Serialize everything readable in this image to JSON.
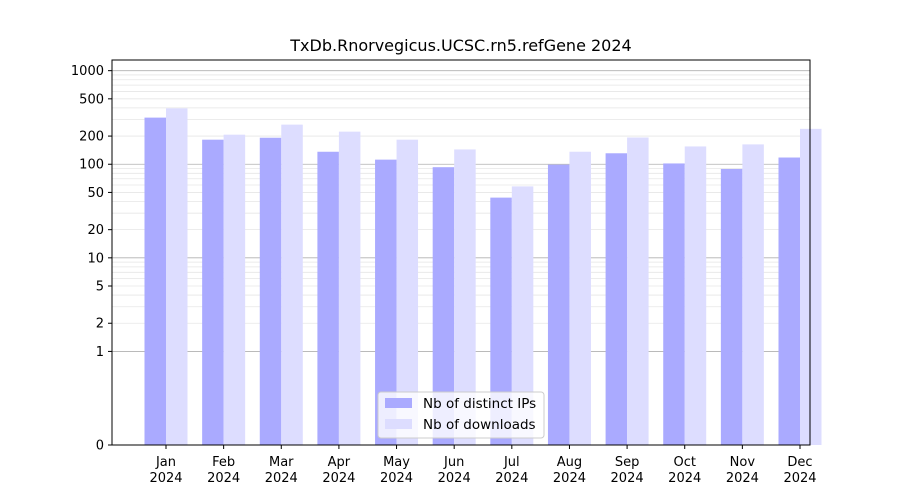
{
  "chart_data": {
    "type": "bar",
    "title": "TxDb.Rnorvegicus.UCSC.rn5.refGene 2024",
    "xlabel": "",
    "ylabel": "",
    "categories": [
      "Jan",
      "Feb",
      "Mar",
      "Apr",
      "May",
      "Jun",
      "Jul",
      "Aug",
      "Sep",
      "Oct",
      "Nov",
      "Dec"
    ],
    "category_sublabel": "2024",
    "series": [
      {
        "name": "Nb of distinct IPs",
        "color": "#aaaaff",
        "values": [
          315,
          183,
          192,
          136,
          112,
          93,
          44,
          99,
          131,
          102,
          89,
          118
        ]
      },
      {
        "name": "Nb of downloads",
        "color": "#ddddff",
        "values": [
          396,
          207,
          265,
          223,
          183,
          144,
          58,
          136,
          193,
          155,
          163,
          239
        ]
      }
    ],
    "y_scale": "symlog",
    "ylim": [
      0,
      1300
    ],
    "y_ticks": [
      0,
      1,
      2,
      5,
      10,
      20,
      50,
      100,
      200,
      500,
      1000
    ],
    "grid": true,
    "legend_position": "bottom-center"
  }
}
